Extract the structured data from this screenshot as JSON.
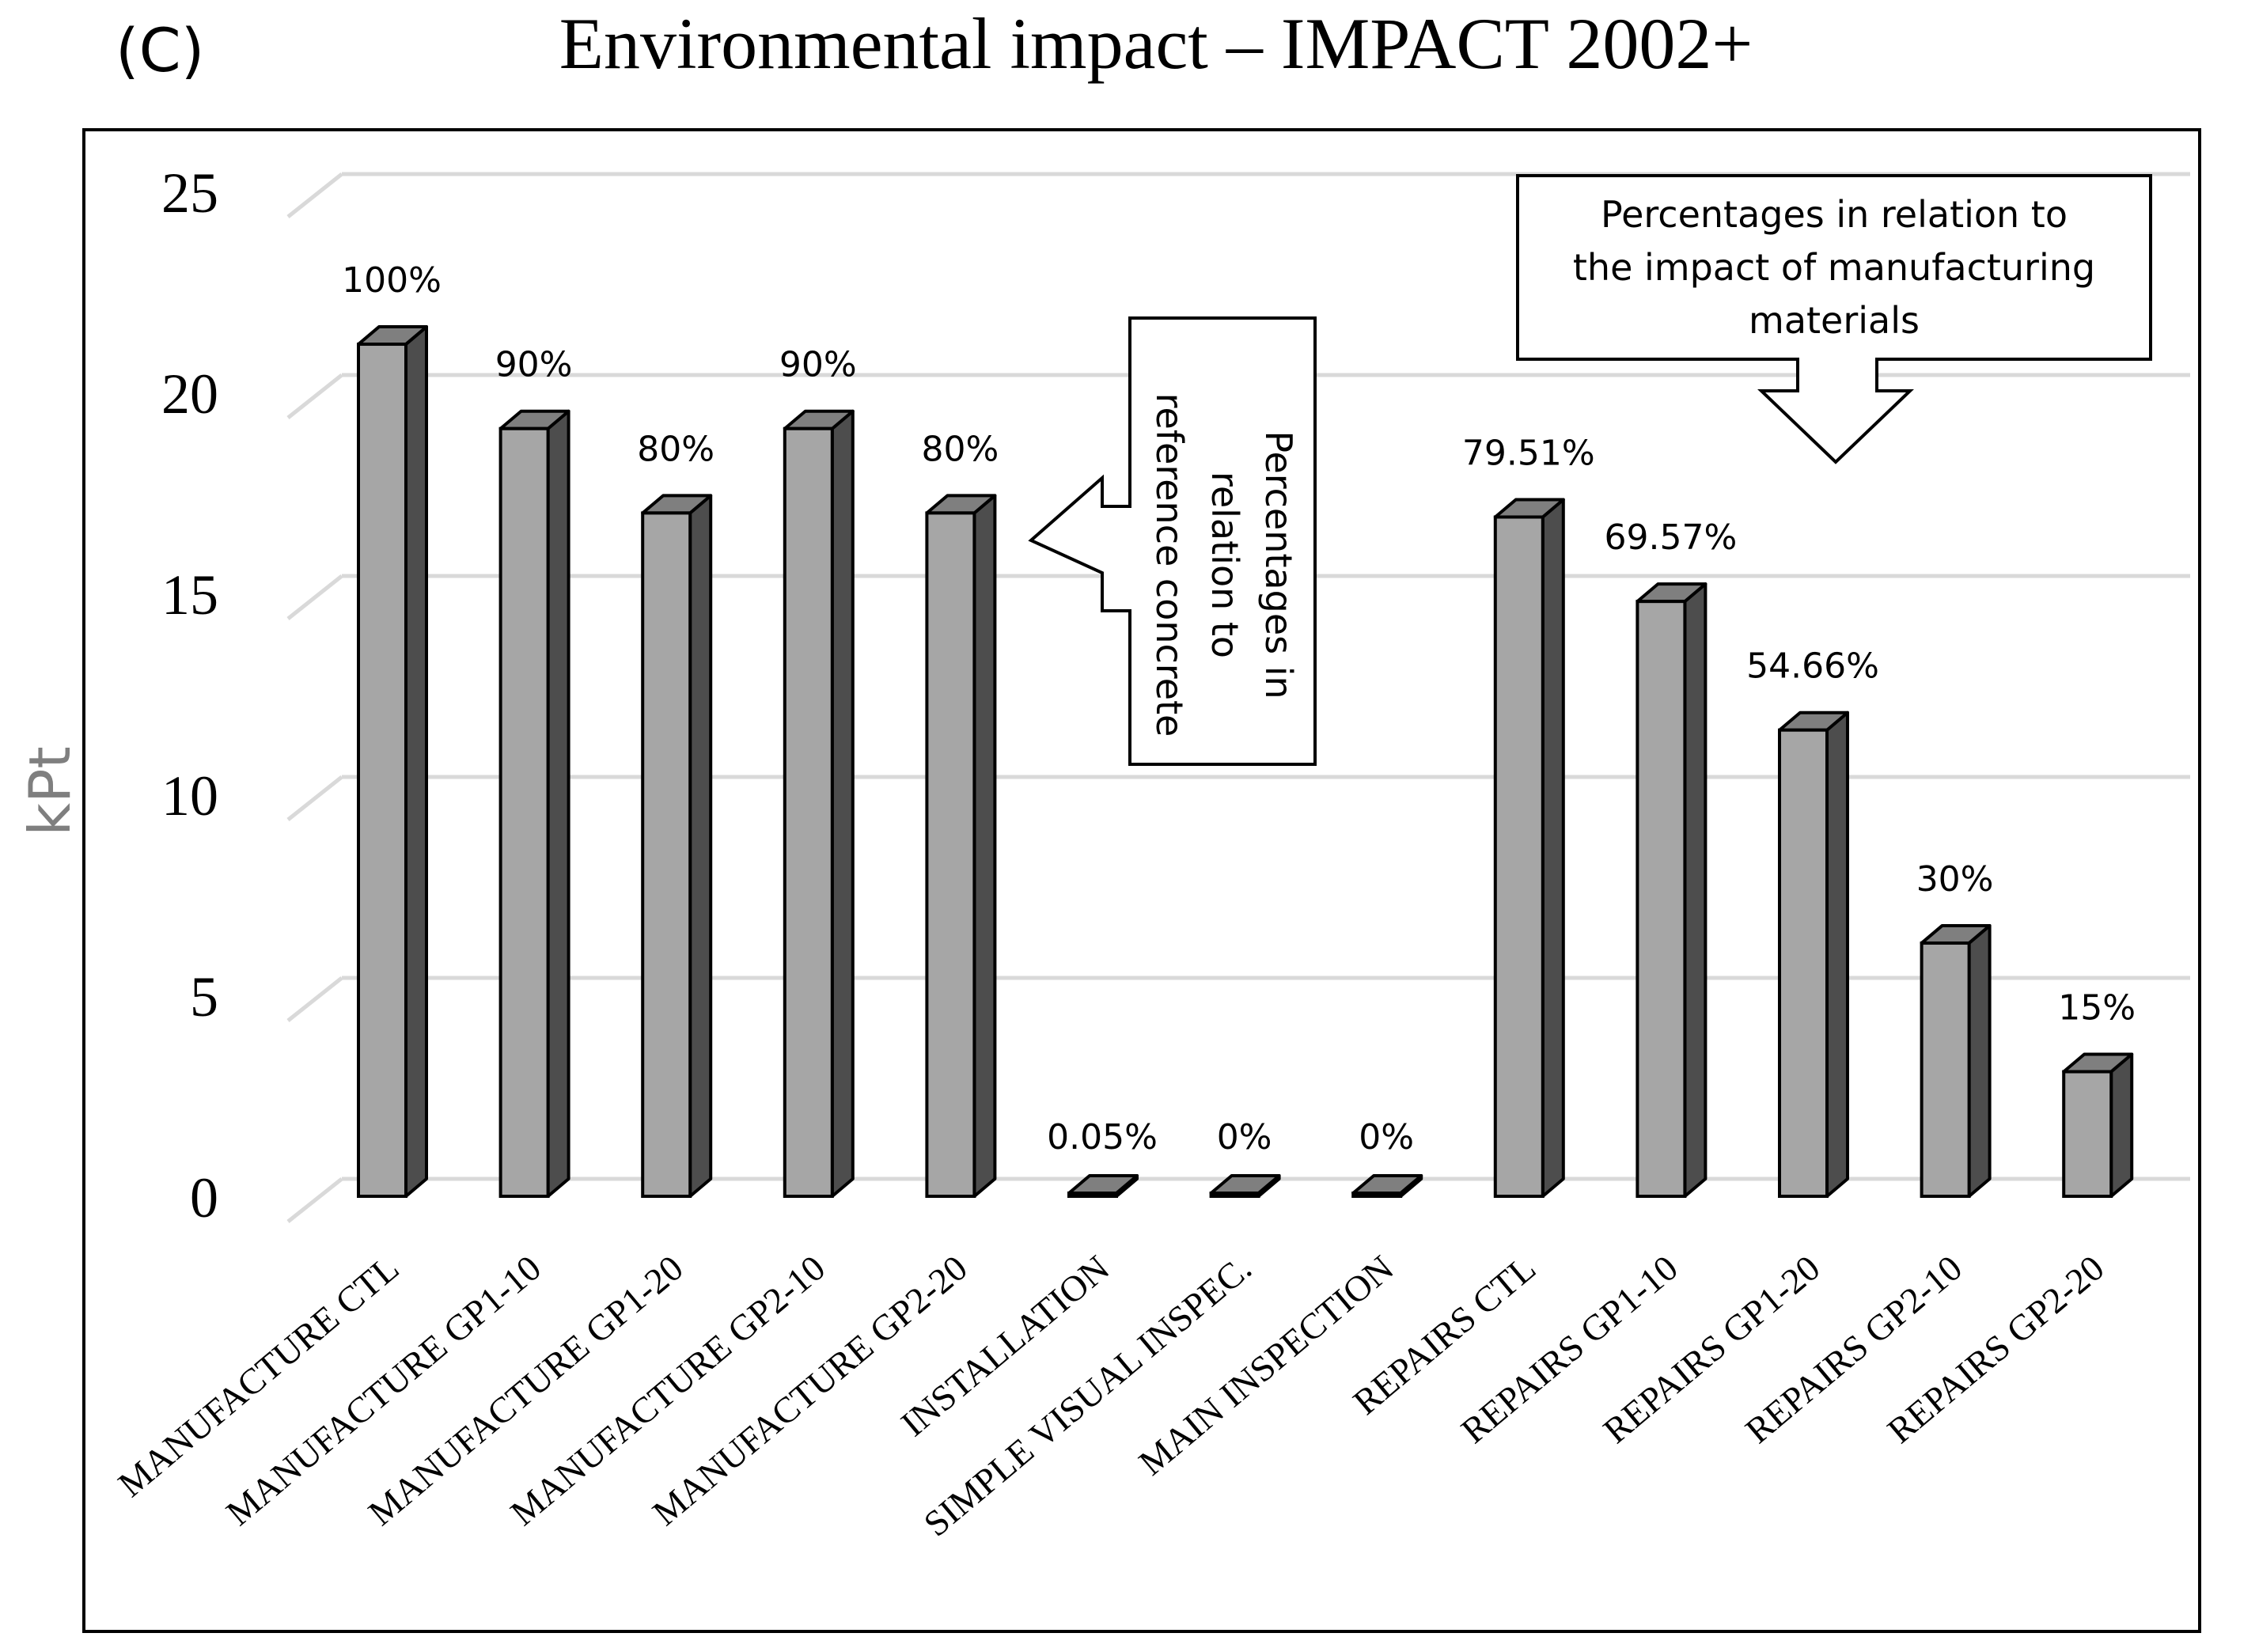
{
  "panel_label": "(C)",
  "chart_data": {
    "type": "bar",
    "title": "Environmental impact – IMPACT 2002+",
    "xlabel": "",
    "ylabel": "kPt",
    "ylim": [
      0,
      25
    ],
    "yticks": [
      "0",
      "5",
      "10",
      "15",
      "20",
      "25"
    ],
    "grid": true,
    "categories": [
      "MANUFACTURE CTL",
      "MANUFACTURE GP1-10",
      "MANUFACTURE GP1-20",
      "MANUFACTURE GP2-10",
      "MANUFACTURE GP2-20",
      "INSTALLATION",
      "SIMPLE VISUAL INSPEC.",
      "MAIN INSPECTION",
      "REPAIRS CTL",
      "REPAIRS GP1-10",
      "REPAIRS GP1-20",
      "REPAIRS GP2-10",
      "REPAIRS GP2-20"
    ],
    "values": [
      21.2,
      19.1,
      17.0,
      19.1,
      17.0,
      0.01,
      0.0,
      0.0,
      16.9,
      14.8,
      11.6,
      6.3,
      3.1
    ],
    "data_labels": [
      "100%",
      "90%",
      "80%",
      "90%",
      "80%",
      "0.05%",
      "0%",
      "0%",
      "79.51%",
      "69.57%",
      "54.66%",
      "30%",
      "15%"
    ],
    "bar_color": "#a6a6a6",
    "bar_side_color": "#4d4d4d",
    "bar_top_color": "#7f7f7f",
    "grid_color": "#d9d9d9",
    "annotations": [
      {
        "id": "reference-concrete-note",
        "lines": [
          "Percentages in",
          "relation to",
          "reference concrete"
        ],
        "orientation": "vertical",
        "arrow": "left"
      },
      {
        "id": "manufacturing-note",
        "lines": [
          "Percentages in relation to",
          "the impact of manufacturing",
          "materials"
        ],
        "orientation": "horizontal",
        "arrow": "down"
      }
    ]
  }
}
